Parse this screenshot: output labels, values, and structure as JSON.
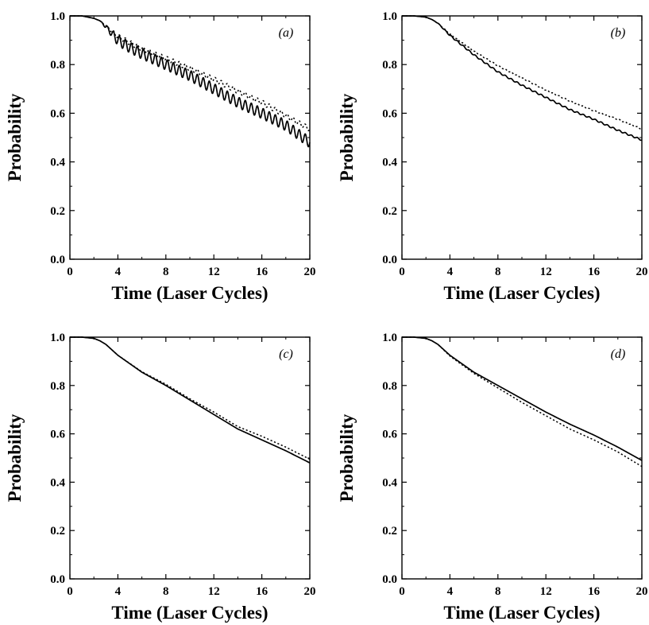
{
  "chart_data": [
    {
      "type": "line",
      "panel_label": "(a)",
      "xlabel": "Time (Laser Cycles)",
      "ylabel": "Probability",
      "xlim": [
        0,
        20
      ],
      "ylim": [
        0,
        1
      ],
      "xticks": [
        "0",
        "4",
        "8",
        "12",
        "16",
        "20"
      ],
      "yticks": [
        "0.0",
        "0.2",
        "0.4",
        "0.6",
        "0.8",
        "1.0"
      ],
      "grid": false,
      "series": [
        {
          "style": "solid",
          "oscillation_amplitude": 0.022,
          "oscillation_period": 0.5,
          "x": [
            0,
            1,
            2,
            2.5,
            3,
            4,
            5,
            6,
            8,
            10,
            12,
            14,
            16,
            18,
            20
          ],
          "y": [
            1.0,
            1.0,
            0.99,
            0.98,
            0.955,
            0.9,
            0.87,
            0.845,
            0.8,
            0.755,
            0.7,
            0.645,
            0.6,
            0.55,
            0.48
          ]
        },
        {
          "style": "dotted",
          "oscillation_amplitude": 0.01,
          "oscillation_period": 0.5,
          "x": [
            0,
            1,
            2,
            2.5,
            3,
            4,
            5,
            6,
            8,
            10,
            12,
            14,
            16,
            18,
            20
          ],
          "y": [
            1.0,
            1.0,
            0.99,
            0.98,
            0.96,
            0.915,
            0.89,
            0.865,
            0.825,
            0.785,
            0.74,
            0.69,
            0.645,
            0.59,
            0.535
          ]
        }
      ]
    },
    {
      "type": "line",
      "panel_label": "(b)",
      "xlabel": "Time (Laser Cycles)",
      "ylabel": "Probability",
      "xlim": [
        0,
        20
      ],
      "ylim": [
        0,
        1
      ],
      "xticks": [
        "0",
        "4",
        "8",
        "12",
        "16",
        "20"
      ],
      "yticks": [
        "0.0",
        "0.2",
        "0.4",
        "0.6",
        "0.8",
        "1.0"
      ],
      "grid": false,
      "series": [
        {
          "style": "solid",
          "oscillation_amplitude": 0.003,
          "oscillation_period": 0.5,
          "x": [
            0,
            1,
            2,
            2.5,
            3,
            4,
            6,
            8,
            10,
            12,
            14,
            16,
            18,
            20
          ],
          "y": [
            1.0,
            1.0,
            0.995,
            0.985,
            0.97,
            0.92,
            0.84,
            0.77,
            0.715,
            0.665,
            0.615,
            0.575,
            0.53,
            0.49
          ]
        },
        {
          "style": "dotted",
          "oscillation_amplitude": 0.002,
          "oscillation_period": 0.5,
          "x": [
            0,
            1,
            2,
            2.5,
            3,
            4,
            6,
            8,
            10,
            12,
            14,
            16,
            18,
            20
          ],
          "y": [
            1.0,
            1.0,
            0.995,
            0.985,
            0.97,
            0.925,
            0.855,
            0.795,
            0.745,
            0.695,
            0.65,
            0.61,
            0.575,
            0.535
          ]
        }
      ]
    },
    {
      "type": "line",
      "panel_label": "(c)",
      "xlabel": "Time (Laser Cycles)",
      "ylabel": "Probability",
      "xlim": [
        0,
        20
      ],
      "ylim": [
        0,
        1
      ],
      "xticks": [
        "0",
        "4",
        "8",
        "12",
        "16",
        "20"
      ],
      "yticks": [
        "0.0",
        "0.2",
        "0.4",
        "0.6",
        "0.8",
        "1.0"
      ],
      "grid": false,
      "series": [
        {
          "style": "solid",
          "oscillation_amplitude": 0,
          "oscillation_period": 0.5,
          "x": [
            0,
            1,
            2,
            2.5,
            3,
            4,
            6,
            8,
            10,
            12,
            14,
            16,
            18,
            20
          ],
          "y": [
            1.0,
            1.0,
            0.995,
            0.985,
            0.97,
            0.925,
            0.855,
            0.8,
            0.74,
            0.68,
            0.62,
            0.575,
            0.53,
            0.48
          ]
        },
        {
          "style": "dotted",
          "oscillation_amplitude": 0,
          "oscillation_period": 0.5,
          "x": [
            0,
            1,
            2,
            2.5,
            3,
            4,
            6,
            8,
            10,
            12,
            14,
            16,
            18,
            20
          ],
          "y": [
            1.0,
            1.0,
            0.995,
            0.985,
            0.97,
            0.925,
            0.857,
            0.805,
            0.745,
            0.69,
            0.63,
            0.59,
            0.545,
            0.495
          ]
        }
      ]
    },
    {
      "type": "line",
      "panel_label": "(d)",
      "xlabel": "Time (Laser Cycles)",
      "ylabel": "Probability",
      "xlim": [
        0,
        20
      ],
      "ylim": [
        0,
        1
      ],
      "xticks": [
        "0",
        "4",
        "8",
        "12",
        "16",
        "20"
      ],
      "yticks": [
        "0.0",
        "0.2",
        "0.4",
        "0.6",
        "0.8",
        "1.0"
      ],
      "grid": false,
      "series": [
        {
          "style": "solid",
          "oscillation_amplitude": 0,
          "oscillation_period": 0.5,
          "x": [
            0,
            1,
            2,
            2.5,
            3,
            4,
            6,
            8,
            10,
            12,
            14,
            16,
            18,
            20
          ],
          "y": [
            1.0,
            1.0,
            0.995,
            0.985,
            0.97,
            0.925,
            0.855,
            0.8,
            0.745,
            0.69,
            0.64,
            0.595,
            0.545,
            0.49
          ]
        },
        {
          "style": "dotted",
          "oscillation_amplitude": 0,
          "oscillation_period": 0.5,
          "x": [
            0,
            1,
            2,
            2.5,
            3,
            4,
            6,
            8,
            10,
            12,
            14,
            16,
            18,
            20
          ],
          "y": [
            1.0,
            1.0,
            0.995,
            0.985,
            0.97,
            0.922,
            0.85,
            0.79,
            0.73,
            0.675,
            0.62,
            0.575,
            0.525,
            0.465
          ]
        }
      ]
    }
  ]
}
